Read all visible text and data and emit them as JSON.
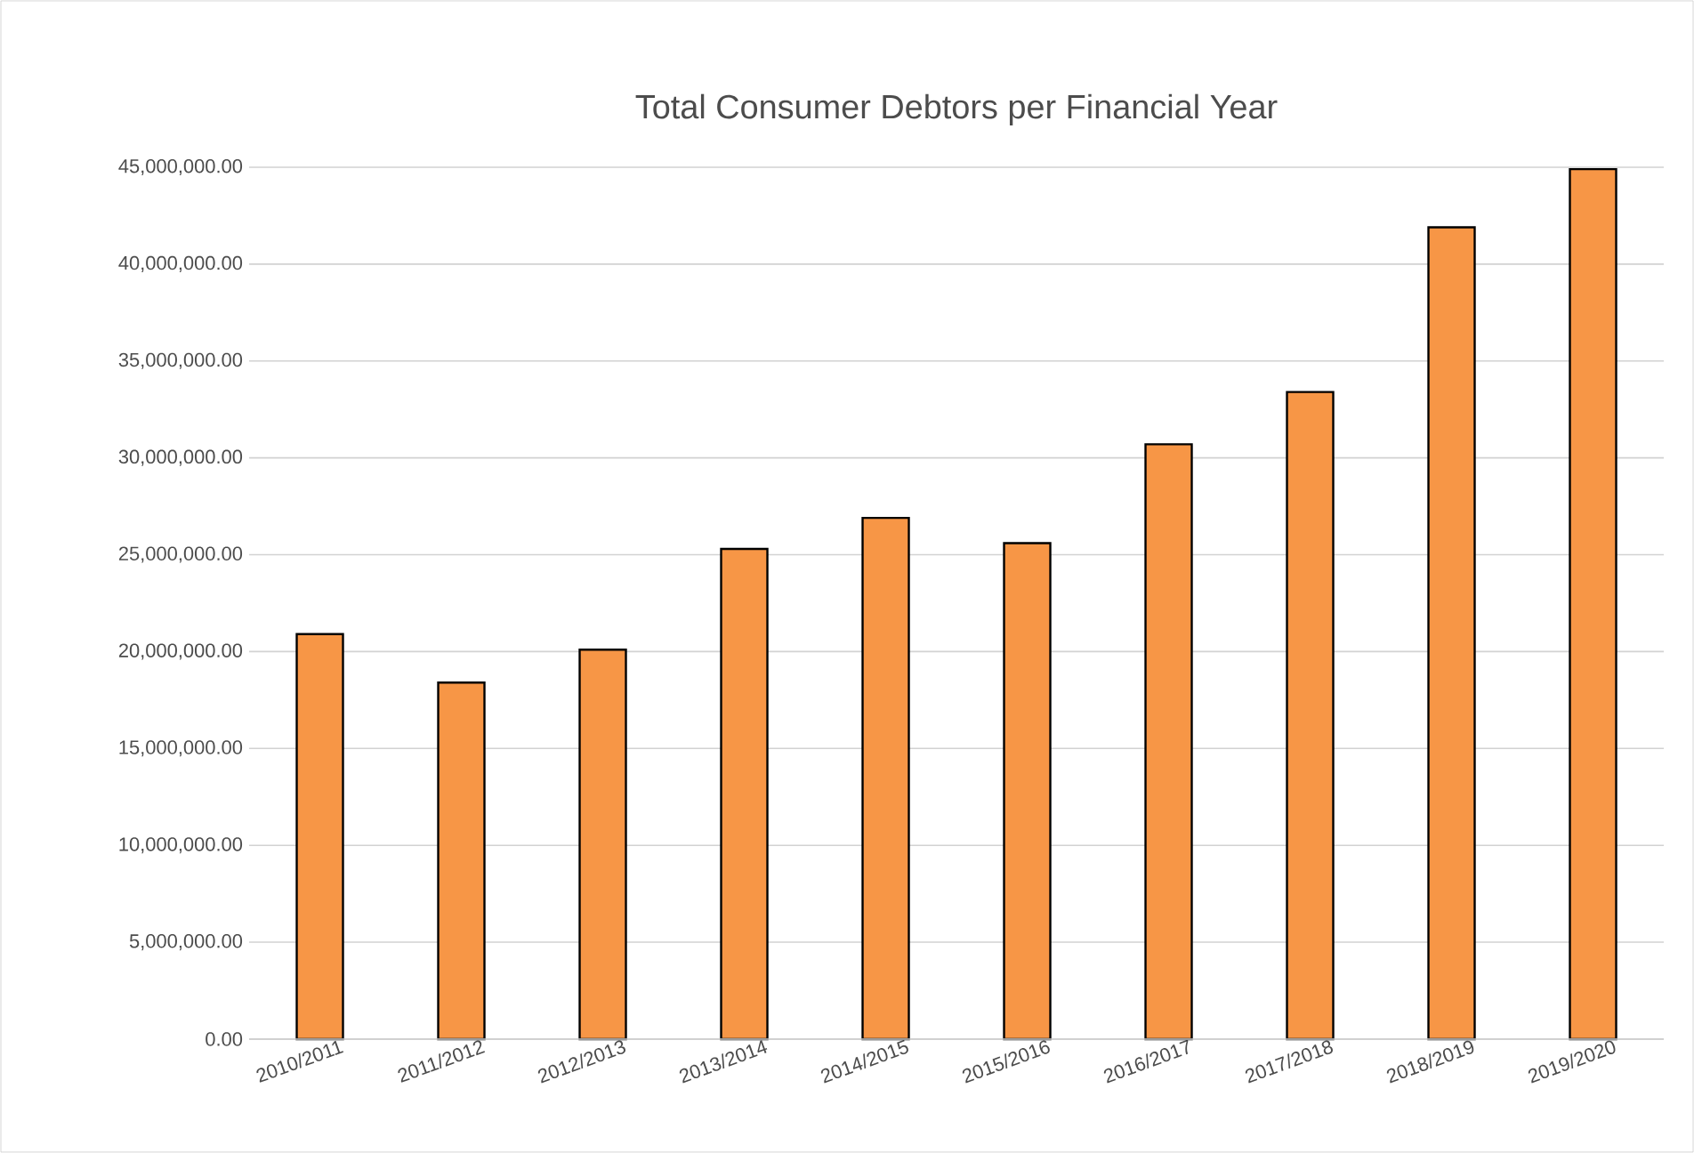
{
  "chart_data": {
    "type": "bar",
    "title": "Total Consumer Debtors per Financial Year",
    "categories": [
      "2010/2011",
      "2011/2012",
      "2012/2013",
      "2013/2014",
      "2014/2015",
      "2015/2016",
      "2016/2017",
      "2017/2018",
      "2018/2019",
      "2019/2020"
    ],
    "values": [
      20900000,
      18400000,
      20100000,
      25300000,
      26900000,
      25600000,
      30700000,
      33400000,
      41900000,
      44900000
    ],
    "color": "#f79646",
    "ylim": [
      0,
      45000000
    ],
    "yticks": [
      {
        "value": 0,
        "label": "0.00"
      },
      {
        "value": 5000000,
        "label": "5,000,000.00"
      },
      {
        "value": 10000000,
        "label": "10,000,000.00"
      },
      {
        "value": 15000000,
        "label": "15,000,000.00"
      },
      {
        "value": 20000000,
        "label": "20,000,000.00"
      },
      {
        "value": 25000000,
        "label": "25,000,000.00"
      },
      {
        "value": 30000000,
        "label": "30,000,000.00"
      },
      {
        "value": 35000000,
        "label": "35,000,000.00"
      },
      {
        "value": 40000000,
        "label": "40,000,000.00"
      },
      {
        "value": 45000000,
        "label": "45,000,000.00"
      }
    ],
    "grid": "y"
  }
}
